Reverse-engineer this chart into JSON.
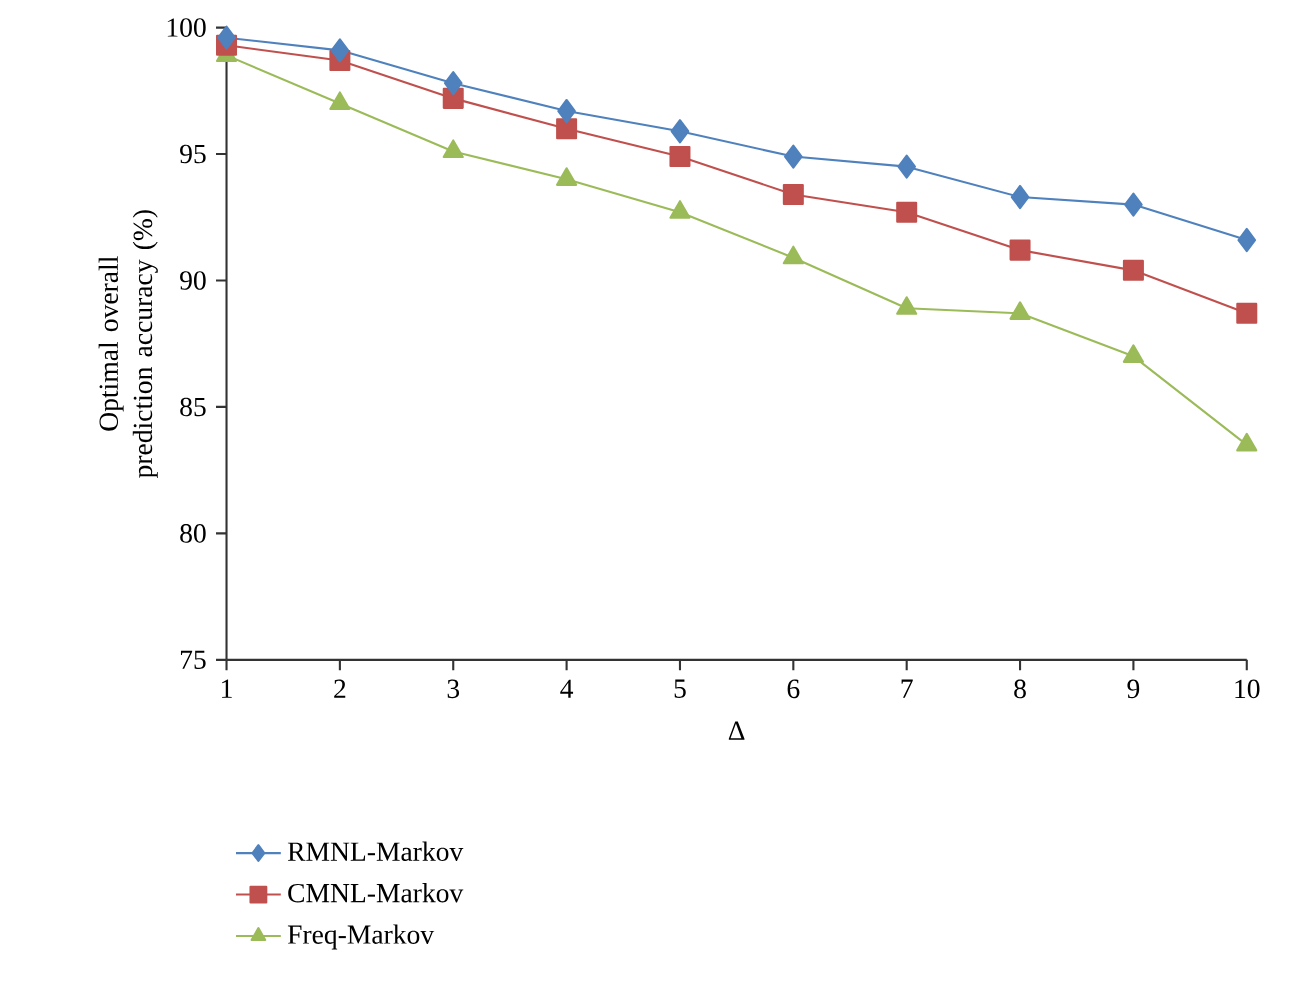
{
  "chart_data": {
    "type": "line",
    "xlabel": "Δ",
    "ylabel": "Optimal overall prediction accuracy (%)",
    "x": [
      1,
      2,
      3,
      4,
      5,
      6,
      7,
      8,
      9,
      10
    ],
    "xlim": [
      1,
      10
    ],
    "xticks": [
      1,
      2,
      3,
      4,
      5,
      6,
      7,
      8,
      9,
      10
    ],
    "ylim": [
      75,
      100
    ],
    "yticks": [
      75,
      80,
      85,
      90,
      95,
      100
    ],
    "grid": false,
    "legend": "bottom",
    "series": [
      {
        "name": "RMNL-Markov",
        "color": "#4f81bd",
        "marker": "diamond",
        "values": [
          99.6,
          99.1,
          97.8,
          96.7,
          95.9,
          94.9,
          94.5,
          93.3,
          93.0,
          91.6
        ]
      },
      {
        "name": "CMNL-Markov",
        "color": "#c0504d",
        "marker": "square",
        "values": [
          99.3,
          98.7,
          97.2,
          96.0,
          94.9,
          93.4,
          92.7,
          91.2,
          90.4,
          88.7
        ]
      },
      {
        "name": "Freq-Markov",
        "color": "#9bbb59",
        "marker": "triangle",
        "values": [
          98.9,
          97.0,
          95.1,
          94.0,
          92.7,
          90.9,
          88.9,
          88.7,
          87.0,
          83.5
        ]
      }
    ]
  }
}
